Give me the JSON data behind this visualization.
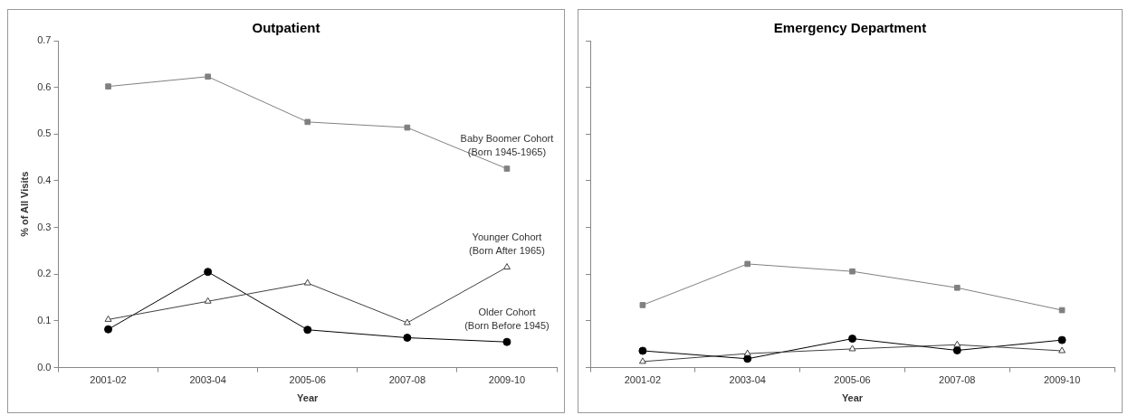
{
  "chart_data": [
    {
      "type": "line",
      "title": "Outpatient",
      "xlabel": "Year",
      "ylabel": "% of All Visits",
      "categories": [
        "2001-02",
        "2003-04",
        "2005-06",
        "2007-08",
        "2009-10"
      ],
      "ylim": [
        0,
        0.7
      ],
      "yticks": [
        {
          "value": 0,
          "label": "0.0"
        },
        0.1,
        0.2,
        0.3,
        0.4,
        0.5,
        0.6,
        0.7
      ],
      "grid": false,
      "legend": false,
      "series": [
        {
          "name": "Baby Boomer Cohort\n(Born 1945-1965)",
          "color": "#808080",
          "marker": "square",
          "values": [
            0.602,
            0.623,
            0.526,
            0.514,
            0.426
          ]
        },
        {
          "name": "Younger Cohort\n(Born After 1965)",
          "color": "#404040",
          "marker": "triangle",
          "values": [
            0.103,
            0.142,
            0.181,
            0.096,
            0.215
          ]
        },
        {
          "name": "Older Cohort\n(Born Before 1945)",
          "color": "#000000",
          "marker": "circle",
          "values": [
            0.082,
            0.205,
            0.081,
            0.064,
            0.055
          ]
        }
      ]
    },
    {
      "type": "line",
      "title": "Emergency Department",
      "xlabel": "Year",
      "categories": [
        "2001-02",
        "2003-04",
        "2005-06",
        "2007-08",
        "2009-10"
      ],
      "ylim": [
        0,
        0.7
      ],
      "yticks": [
        0,
        0.1,
        0.2,
        0.3,
        0.4,
        0.5,
        0.6,
        0.7
      ],
      "tick_labels": "x",
      "grid": false,
      "legend": false,
      "series": [
        {
          "color": "#808080",
          "marker": "square",
          "values": [
            0.134,
            0.222,
            0.206,
            0.171,
            0.123
          ]
        },
        {
          "color": "#404040",
          "marker": "triangle",
          "values": [
            0.013,
            0.03,
            0.04,
            0.049,
            0.036
          ]
        },
        {
          "color": "#000000",
          "marker": "circle",
          "values": [
            0.036,
            0.019,
            0.062,
            0.037,
            0.059
          ]
        }
      ]
    }
  ]
}
